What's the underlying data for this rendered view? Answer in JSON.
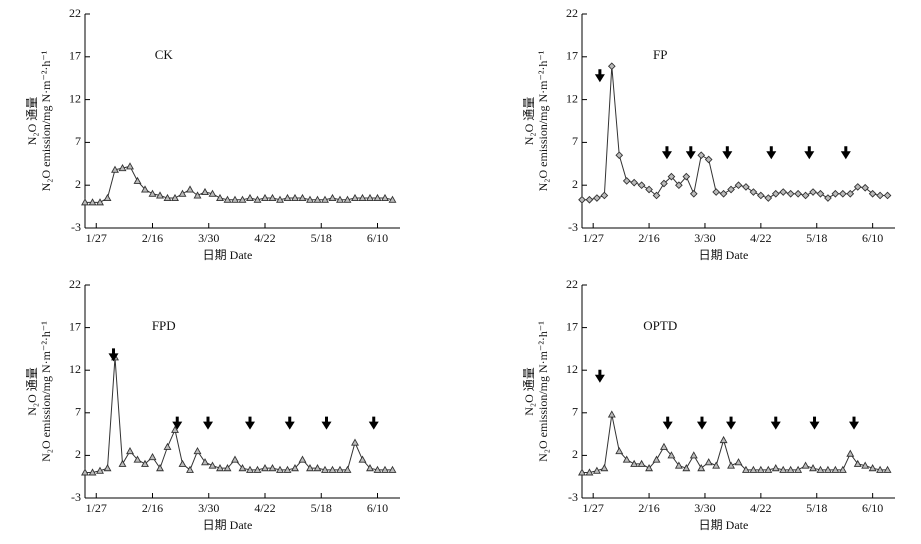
{
  "chart_data": [
    {
      "type": "line",
      "title": "CK",
      "xlabel": "日期 Date",
      "ylabel": [
        "N₂O 通量",
        "N₂O emission/mg N·m⁻²·h⁻¹"
      ],
      "marker": "triangle",
      "color": "#333",
      "xlim": [
        0,
        42
      ],
      "xticks": [
        {
          "value": 1.5,
          "label": "1/27"
        },
        {
          "value": 9,
          "label": "2/16"
        },
        {
          "value": 16.5,
          "label": "3/30"
        },
        {
          "value": 24,
          "label": "4/22"
        },
        {
          "value": 31.5,
          "label": "5/18"
        },
        {
          "value": 39,
          "label": "6/10"
        }
      ],
      "ylim": [
        -3,
        22
      ],
      "yticks": [
        -3,
        2,
        7,
        12,
        17,
        22
      ],
      "values": [
        0,
        0,
        0,
        0.5,
        3.8,
        4,
        4.2,
        2.5,
        1.5,
        1,
        0.8,
        0.5,
        0.5,
        1,
        1.5,
        0.8,
        1.2,
        1,
        0.5,
        0.3,
        0.3,
        0.3,
        0.5,
        0.3,
        0.5,
        0.5,
        0.3,
        0.5,
        0.5,
        0.5,
        0.3,
        0.3,
        0.3,
        0.5,
        0.3,
        0.3,
        0.5,
        0.5,
        0.5,
        0.5,
        0.5,
        0.3
      ],
      "arrows": []
    },
    {
      "type": "line",
      "title": "FP",
      "xlabel": "日期 Date",
      "ylabel": [
        "N₂O 通量",
        "N₂O emission/mg N·m⁻²·h⁻¹"
      ],
      "marker": "diamond",
      "color": "#333",
      "xlim": [
        0,
        42
      ],
      "xticks": [
        {
          "value": 1.5,
          "label": "1/27"
        },
        {
          "value": 9,
          "label": "2/16"
        },
        {
          "value": 16.5,
          "label": "3/30"
        },
        {
          "value": 24,
          "label": "4/22"
        },
        {
          "value": 31.5,
          "label": "5/18"
        },
        {
          "value": 39,
          "label": "6/10"
        }
      ],
      "ylim": [
        -3,
        22
      ],
      "yticks": [
        -3,
        2,
        7,
        12,
        17,
        22
      ],
      "values": [
        0.3,
        0.3,
        0.5,
        0.8,
        15.9,
        5.5,
        2.5,
        2.3,
        2,
        1.5,
        0.8,
        2.2,
        3,
        2,
        3,
        1,
        5.5,
        5,
        1.2,
        1,
        1.5,
        2,
        1.8,
        1.2,
        0.8,
        0.5,
        1,
        1.2,
        1,
        1,
        0.8,
        1.2,
        1,
        0.5,
        1,
        1,
        1,
        1.8,
        1.7,
        1,
        0.8,
        0.8
      ],
      "arrows": [
        {
          "x": 2.4,
          "y": 14.5
        },
        {
          "x": 11.4,
          "y": 5.5
        },
        {
          "x": 14.6,
          "y": 5.5
        },
        {
          "x": 19.5,
          "y": 5.5
        },
        {
          "x": 25.4,
          "y": 5.5
        },
        {
          "x": 30.5,
          "y": 5.5
        },
        {
          "x": 35.4,
          "y": 5.5
        }
      ]
    },
    {
      "type": "line",
      "title": "FPD",
      "xlabel": "日期 Date",
      "ylabel": [
        "N₂O 通量",
        "N₂O emission/mg N·m⁻²·h⁻¹"
      ],
      "marker": "triangle",
      "color": "#333",
      "xlim": [
        0,
        42
      ],
      "xticks": [
        {
          "value": 1.5,
          "label": "1/27"
        },
        {
          "value": 9,
          "label": "2/16"
        },
        {
          "value": 16.5,
          "label": "3/30"
        },
        {
          "value": 24,
          "label": "4/22"
        },
        {
          "value": 31.5,
          "label": "5/18"
        },
        {
          "value": 39,
          "label": "6/10"
        }
      ],
      "ylim": [
        -3,
        22
      ],
      "yticks": [
        -3,
        2,
        7,
        12,
        17,
        22
      ],
      "values": [
        0,
        0,
        0.2,
        0.5,
        13.5,
        1,
        2.5,
        1.5,
        1,
        1.8,
        0.5,
        3,
        5,
        1,
        0.3,
        2.5,
        1.2,
        0.8,
        0.5,
        0.5,
        1.5,
        0.5,
        0.3,
        0.3,
        0.5,
        0.5,
        0.3,
        0.3,
        0.5,
        1.5,
        0.5,
        0.5,
        0.3,
        0.3,
        0.3,
        0.3,
        3.5,
        1.5,
        0.5,
        0.3,
        0.3,
        0.3
      ],
      "arrows": [
        {
          "x": 3.8,
          "y": 13.5
        },
        {
          "x": 12.3,
          "y": 5.5
        },
        {
          "x": 16.4,
          "y": 5.5
        },
        {
          "x": 22,
          "y": 5.5
        },
        {
          "x": 27.3,
          "y": 5.5
        },
        {
          "x": 32.2,
          "y": 5.5
        },
        {
          "x": 38.5,
          "y": 5.5
        }
      ]
    },
    {
      "type": "line",
      "title": "OPTD",
      "xlabel": "日期 Date",
      "ylabel": [
        "N₂O 通量",
        "N₂O emission/mg N·m⁻²·h⁻¹"
      ],
      "marker": "triangle",
      "color": "#333",
      "xlim": [
        0,
        42
      ],
      "xticks": [
        {
          "value": 1.5,
          "label": "1/27"
        },
        {
          "value": 9,
          "label": "2/16"
        },
        {
          "value": 16.5,
          "label": "3/30"
        },
        {
          "value": 24,
          "label": "4/22"
        },
        {
          "value": 31.5,
          "label": "5/18"
        },
        {
          "value": 39,
          "label": "6/10"
        }
      ],
      "ylim": [
        -3,
        22
      ],
      "yticks": [
        -3,
        2,
        7,
        12,
        17,
        22
      ],
      "values": [
        0,
        0,
        0.2,
        0.5,
        6.8,
        2.5,
        1.5,
        1,
        1,
        0.5,
        1.5,
        3,
        2,
        0.8,
        0.5,
        2,
        0.5,
        1.2,
        0.8,
        3.8,
        0.8,
        1.2,
        0.3,
        0.3,
        0.3,
        0.3,
        0.5,
        0.3,
        0.3,
        0.3,
        0.8,
        0.5,
        0.3,
        0.3,
        0.3,
        0.3,
        2.2,
        1,
        0.8,
        0.5,
        0.3,
        0.3
      ],
      "arrows": [
        {
          "x": 2.4,
          "y": 11
        },
        {
          "x": 11.5,
          "y": 5.5
        },
        {
          "x": 16.1,
          "y": 5.5
        },
        {
          "x": 20,
          "y": 5.5
        },
        {
          "x": 26,
          "y": 5.5
        },
        {
          "x": 31.2,
          "y": 5.5
        },
        {
          "x": 36.5,
          "y": 5.5
        }
      ]
    }
  ]
}
